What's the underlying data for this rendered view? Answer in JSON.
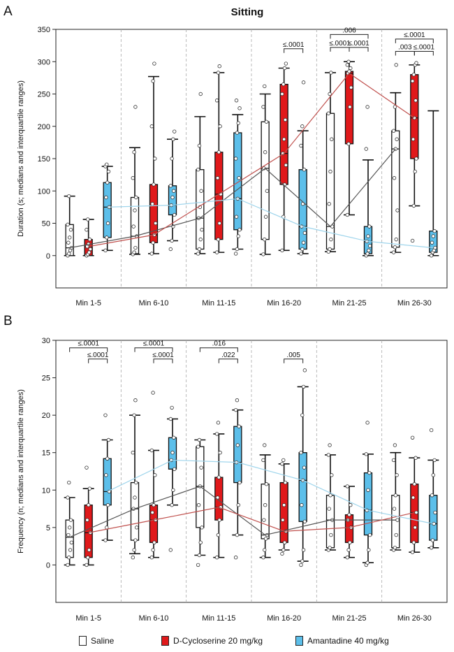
{
  "colors": {
    "saline": "#ffffff",
    "dcs": "#e0191b",
    "amantadine": "#5cbfea",
    "saline_line": "#555555",
    "dcs_line": "#c0504d",
    "amantadine_line": "#9fd5ec"
  },
  "legend": {
    "saline": "Saline",
    "dcs": "D-Cycloserine  20 mg/kg",
    "amantadine": "Amantadine  40 mg/kg"
  },
  "chart_data": [
    {
      "panel_label": "A",
      "type": "box",
      "title": "Sitting",
      "ylabel": "Duration  (s; medians and interquartile ranges)",
      "ylim": [
        -50,
        350
      ],
      "yticks": [
        0,
        50,
        100,
        150,
        200,
        250,
        300,
        350
      ],
      "categories": [
        "Min 1-5",
        "Min 6-10",
        "Min 11-15",
        "Min 16-20",
        "Min 21-25",
        "Min 26-30"
      ],
      "series": [
        {
          "name": "Saline",
          "color": "saline",
          "line": "saline_line",
          "boxes": [
            {
              "min": 0,
              "q1": 0,
              "median": 12,
              "q3": 48,
              "max": 92,
              "points": [
                0,
                3,
                8,
                12,
                20,
                28,
                40,
                48,
                92
              ]
            },
            {
              "min": 2,
              "q1": 3,
              "median": 30,
              "q3": 90,
              "max": 167,
              "points": [
                2,
                5,
                12,
                30,
                45,
                70,
                90,
                120,
                160,
                230
              ]
            },
            {
              "min": 3,
              "q1": 10,
              "median": 58,
              "q3": 133,
              "max": 215,
              "points": [
                3,
                10,
                25,
                40,
                58,
                75,
                100,
                133,
                170,
                250
              ]
            },
            {
              "min": 2,
              "q1": 25,
              "median": 135,
              "q3": 207,
              "max": 250,
              "points": [
                2,
                25,
                60,
                100,
                135,
                160,
                207,
                230,
                262
              ]
            },
            {
              "min": 6,
              "q1": 10,
              "median": 45,
              "q3": 220,
              "max": 283,
              "points": [
                6,
                10,
                25,
                45,
                80,
                130,
                180,
                220,
                250,
                283
              ]
            },
            {
              "min": 5,
              "q1": 13,
              "median": 165,
              "q3": 193,
              "max": 252,
              "points": [
                5,
                13,
                25,
                70,
                120,
                165,
                180,
                193,
                230,
                295
              ]
            }
          ]
        },
        {
          "name": "D-Cycloserine 20 mg/kg",
          "color": "dcs",
          "line": "dcs_line",
          "boxes": [
            {
              "min": 0,
              "q1": 0,
              "median": 14,
              "q3": 25,
              "max": 56,
              "points": [
                0,
                2,
                5,
                10,
                14,
                18,
                25,
                40,
                56
              ]
            },
            {
              "min": 3,
              "q1": 20,
              "median": 32,
              "q3": 110,
              "max": 277,
              "points": [
                3,
                20,
                32,
                50,
                80,
                110,
                150,
                200,
                270,
                297
              ]
            },
            {
              "min": 5,
              "q1": 25,
              "median": 95,
              "q3": 160,
              "max": 283,
              "points": [
                5,
                25,
                50,
                95,
                120,
                160,
                200,
                240,
                283,
                293
              ]
            },
            {
              "min": 8,
              "q1": 110,
              "median": 158,
              "q3": 265,
              "max": 290,
              "points": [
                8,
                60,
                110,
                140,
                158,
                180,
                210,
                250,
                265,
                290,
                297
              ]
            },
            {
              "min": 63,
              "q1": 173,
              "median": 282,
              "q3": 285,
              "max": 300,
              "points": [
                63,
                173,
                230,
                260,
                282,
                285,
                290,
                295,
                300
              ]
            },
            {
              "min": 77,
              "q1": 150,
              "median": 213,
              "q3": 280,
              "max": 295,
              "points": [
                23,
                77,
                130,
                150,
                180,
                213,
                240,
                270,
                280,
                295,
                298
              ]
            }
          ]
        },
        {
          "name": "Amantadine 40 mg/kg",
          "color": "amantadine",
          "line": "amantadine_line",
          "boxes": [
            {
              "min": 8,
              "q1": 28,
              "median": 75,
              "q3": 113,
              "max": 138,
              "points": [
                8,
                28,
                50,
                75,
                90,
                113,
                130,
                138,
                141
              ]
            },
            {
              "min": 23,
              "q1": 63,
              "median": 78,
              "q3": 108,
              "max": 180,
              "points": [
                10,
                23,
                45,
                63,
                78,
                90,
                100,
                108,
                150,
                180,
                192
              ]
            },
            {
              "min": 10,
              "q1": 40,
              "median": 88,
              "q3": 190,
              "max": 218,
              "points": [
                3,
                10,
                30,
                40,
                60,
                88,
                120,
                150,
                190,
                205,
                228,
                240
              ]
            },
            {
              "min": 3,
              "q1": 10,
              "median": 45,
              "q3": 133,
              "max": 193,
              "points": [
                3,
                10,
                20,
                35,
                45,
                80,
                133,
                170,
                200,
                268
              ]
            },
            {
              "min": 0,
              "q1": 3,
              "median": 22,
              "q3": 45,
              "max": 148,
              "points": [
                0,
                3,
                8,
                15,
                22,
                30,
                45,
                165,
                230
              ]
            },
            {
              "min": 0,
              "q1": 5,
              "median": 12,
              "q3": 38,
              "max": 224,
              "points": [
                0,
                5,
                8,
                12,
                20,
                30,
                38
              ]
            }
          ]
        }
      ],
      "annotations": [
        {
          "group": 3,
          "from": 1,
          "to": 2,
          "text": "≤.0001",
          "y": 320
        },
        {
          "group": 4,
          "from": 0,
          "to": 1,
          "text": "≤.0001",
          "y": 322
        },
        {
          "group": 4,
          "from": 1,
          "to": 2,
          "text": "≤.0001",
          "y": 322
        },
        {
          "group": 4,
          "from": 0,
          "to": 2,
          "text": ".006",
          "y": 342
        },
        {
          "group": 5,
          "from": 0,
          "to": 1,
          "text": ".003",
          "y": 316
        },
        {
          "group": 5,
          "from": 1,
          "to": 2,
          "text": "≤.0001",
          "y": 316
        },
        {
          "group": 5,
          "from": 0,
          "to": 2,
          "text": "≤.0001",
          "y": 335
        }
      ]
    },
    {
      "panel_label": "B",
      "type": "box",
      "title": "",
      "ylabel": "Frequency  (n; medians and interquartile ranges)",
      "ylim": [
        -5,
        30
      ],
      "yticks": [
        0,
        5,
        10,
        15,
        20,
        25,
        30
      ],
      "categories": [
        "Min 1-5",
        "Min 6-10",
        "Min 11-15",
        "Min 16-20",
        "Min 21-25",
        "Min 26-30"
      ],
      "series": [
        {
          "name": "Saline",
          "color": "saline",
          "line": "saline_line",
          "boxes": [
            {
              "min": 0,
              "q1": 1,
              "median": 3.7,
              "q3": 6,
              "max": 9,
              "points": [
                0,
                1,
                2,
                3,
                4,
                5,
                6,
                9,
                11
              ]
            },
            {
              "min": 1.5,
              "q1": 3.3,
              "median": 7.5,
              "q3": 11,
              "max": 20,
              "points": [
                1,
                2,
                3.3,
                5,
                7.5,
                9,
                11,
                15,
                20,
                22
              ]
            },
            {
              "min": 1.3,
              "q1": 5,
              "median": 10.5,
              "q3": 15.8,
              "max": 16.7,
              "points": [
                0,
                1.3,
                3,
                5,
                8,
                10.5,
                13,
                15.8,
                16.7
              ]
            },
            {
              "min": 1,
              "q1": 3.5,
              "median": 4,
              "q3": 10.8,
              "max": 14.7,
              "points": [
                1,
                2,
                3.5,
                4,
                6,
                8,
                10.8,
                14,
                16
              ]
            },
            {
              "min": 2,
              "q1": 2.3,
              "median": 6,
              "q3": 9.3,
              "max": 14.7,
              "points": [
                2,
                2.3,
                4,
                6,
                7.5,
                9.3,
                12,
                14.7,
                16
              ]
            },
            {
              "min": 2,
              "q1": 2.3,
              "median": 6,
              "q3": 9.3,
              "max": 15,
              "points": [
                2,
                2.3,
                4,
                6,
                7.5,
                9.3,
                12,
                14,
                16
              ]
            }
          ]
        },
        {
          "name": "D-Cycloserine 20 mg/kg",
          "color": "dcs",
          "line": "dcs_line",
          "boxes": [
            {
              "min": 0,
              "q1": 1,
              "median": 4.3,
              "q3": 8,
              "max": 10.2,
              "points": [
                0,
                1,
                2,
                4.3,
                6,
                8,
                10.2,
                13
              ]
            },
            {
              "min": 1,
              "q1": 3,
              "median": 6,
              "q3": 8,
              "max": 15.3,
              "points": [
                1,
                2,
                3,
                6,
                7,
                8,
                12,
                15.3,
                23
              ]
            },
            {
              "min": 1,
              "q1": 6,
              "median": 7.7,
              "q3": 11.7,
              "max": 17.5,
              "points": [
                1,
                4,
                6,
                7.7,
                9,
                11.7,
                15,
                17.5,
                19
              ]
            },
            {
              "min": 2,
              "q1": 3,
              "median": 4.5,
              "q3": 11,
              "max": 13.5,
              "points": [
                1.5,
                2,
                3,
                4.5,
                6,
                8,
                11,
                13.5,
                14
              ]
            },
            {
              "min": 1,
              "q1": 3,
              "median": 5,
              "q3": 6.7,
              "max": 10.5,
              "points": [
                1,
                2,
                3,
                5,
                6,
                6.7,
                8,
                10.5
              ]
            },
            {
              "min": 1.7,
              "q1": 3,
              "median": 7,
              "q3": 10.8,
              "max": 14.3,
              "points": [
                1.7,
                3,
                5,
                7,
                9,
                10.8,
                14.3,
                17
              ]
            }
          ]
        },
        {
          "name": "Amantadine 40 mg/kg",
          "color": "amantadine",
          "line": "amantadine_line",
          "boxes": [
            {
              "min": 3.3,
              "q1": 8,
              "median": 9.8,
              "q3": 14.2,
              "max": 16.7,
              "points": [
                3.3,
                5,
                8,
                9.8,
                12,
                14.2,
                16.7,
                20
              ]
            },
            {
              "min": 8,
              "q1": 12.8,
              "median": 14,
              "q3": 17,
              "max": 19.5,
              "points": [
                2,
                8,
                10,
                12.8,
                14,
                15,
                17,
                19.5,
                21
              ]
            },
            {
              "min": 4,
              "q1": 11,
              "median": 13.7,
              "q3": 18.5,
              "max": 20.7,
              "points": [
                1,
                4,
                8,
                11,
                13.7,
                16,
                18.5,
                20.7,
                22
              ]
            },
            {
              "min": 0.5,
              "q1": 5.8,
              "median": 11.3,
              "q3": 15,
              "max": 23.8,
              "points": [
                0,
                0.5,
                2,
                5.8,
                8,
                11.3,
                13,
                15,
                20,
                23.8,
                26
              ]
            },
            {
              "min": 0.3,
              "q1": 4,
              "median": 7.3,
              "q3": 12.3,
              "max": 14.8,
              "points": [
                0,
                0.3,
                2,
                4,
                7.3,
                10,
                12.3,
                14.8,
                19
              ]
            },
            {
              "min": 2.3,
              "q1": 3.3,
              "median": 5.5,
              "q3": 9.3,
              "max": 14,
              "points": [
                2.3,
                3.3,
                5.5,
                7,
                9.3,
                12,
                14,
                18
              ]
            }
          ]
        }
      ],
      "annotations": [
        {
          "group": 0,
          "from": 0,
          "to": 2,
          "text": "≤.0001",
          "y": 29
        },
        {
          "group": 0,
          "from": 1,
          "to": 2,
          "text": "≤.0001",
          "y": 27.5
        },
        {
          "group": 1,
          "from": 0,
          "to": 2,
          "text": "≤.0001",
          "y": 29
        },
        {
          "group": 1,
          "from": 1,
          "to": 2,
          "text": "≤.0001",
          "y": 27.5
        },
        {
          "group": 2,
          "from": 0,
          "to": 2,
          "text": ".016",
          "y": 29
        },
        {
          "group": 2,
          "from": 1,
          "to": 2,
          "text": ".022",
          "y": 27.5
        },
        {
          "group": 3,
          "from": 1,
          "to": 2,
          "text": ".005",
          "y": 27.5
        }
      ]
    }
  ]
}
